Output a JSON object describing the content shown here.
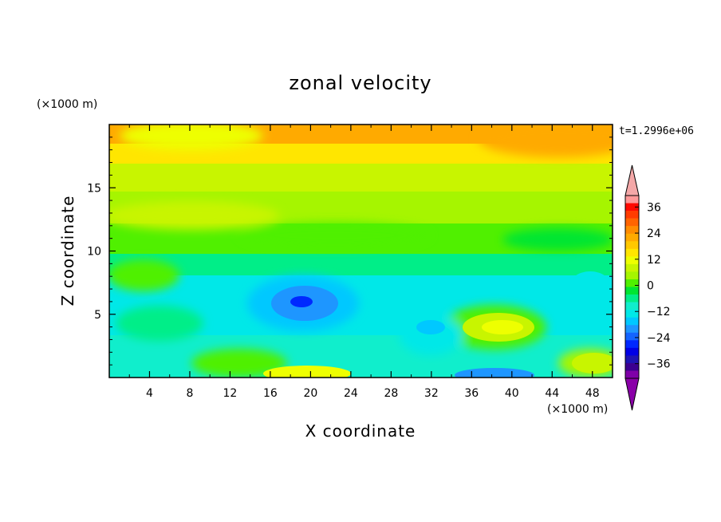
{
  "chart_data": {
    "type": "heatmap",
    "title": "zonal velocity",
    "xlabel": "X coordinate",
    "ylabel": "Z coordinate",
    "x_unit": "(×1000 m)",
    "y_unit": "(×1000 m)",
    "time_label": "t=1.2996e+06",
    "xlim": [
      0,
      50
    ],
    "ylim": [
      0,
      20
    ],
    "x_ticks": [
      4,
      8,
      12,
      16,
      20,
      24,
      28,
      32,
      36,
      40,
      44,
      48
    ],
    "y_ticks": [
      5,
      10,
      15
    ],
    "colorbar": {
      "levels": [
        -42,
        -39,
        -36,
        -33,
        -30,
        -27,
        -24,
        -21,
        -18,
        -15,
        -12,
        -9,
        -6,
        -3,
        0,
        3,
        6,
        9,
        12,
        15,
        18,
        21,
        24,
        27,
        30,
        33,
        36,
        39,
        42
      ],
      "tick_labels": [
        "36",
        "24",
        "12",
        "0",
        "-12",
        "-24",
        "-36"
      ],
      "tick_values": [
        36,
        24,
        12,
        0,
        -12,
        -24,
        -36
      ],
      "colors": [
        "#7f00a8",
        "#3c0090",
        "#1e14b4",
        "#0000e6",
        "#0028ff",
        "#1464ff",
        "#1e96ff",
        "#00c8ff",
        "#00e8e8",
        "#10eecc",
        "#00ee88",
        "#00e632",
        "#50f000",
        "#a6f500",
        "#c8f500",
        "#eeff00",
        "#ffe600",
        "#ffc800",
        "#ffaa00",
        "#ff8c00",
        "#ff6400",
        "#ff3c00",
        "#ff0a00",
        "#ff9999"
      ],
      "over_color": "#f4a8a8",
      "under_color": "#8a00a8"
    },
    "field_description": [
      {
        "z": 19,
        "value": 24
      },
      {
        "z": 17,
        "value": 15
      },
      {
        "z": 14,
        "value": 9
      },
      {
        "z": 11,
        "value": 3
      },
      {
        "z": 8,
        "value": -6
      },
      {
        "z": 5,
        "value": -12
      },
      {
        "z": 2,
        "value": -9
      },
      {
        "z": 0.5,
        "value": -3
      }
    ],
    "features": [
      {
        "x": 19,
        "z": 6,
        "value": -24
      },
      {
        "x": 38,
        "z": 4,
        "value": 15
      },
      {
        "x": 38,
        "z": 0.3,
        "value": -18
      },
      {
        "x": 20,
        "z": 0.5,
        "value": 15
      },
      {
        "x": 47,
        "z": 1,
        "value": 12
      },
      {
        "x": 40,
        "z": 19,
        "value": 24
      }
    ]
  }
}
